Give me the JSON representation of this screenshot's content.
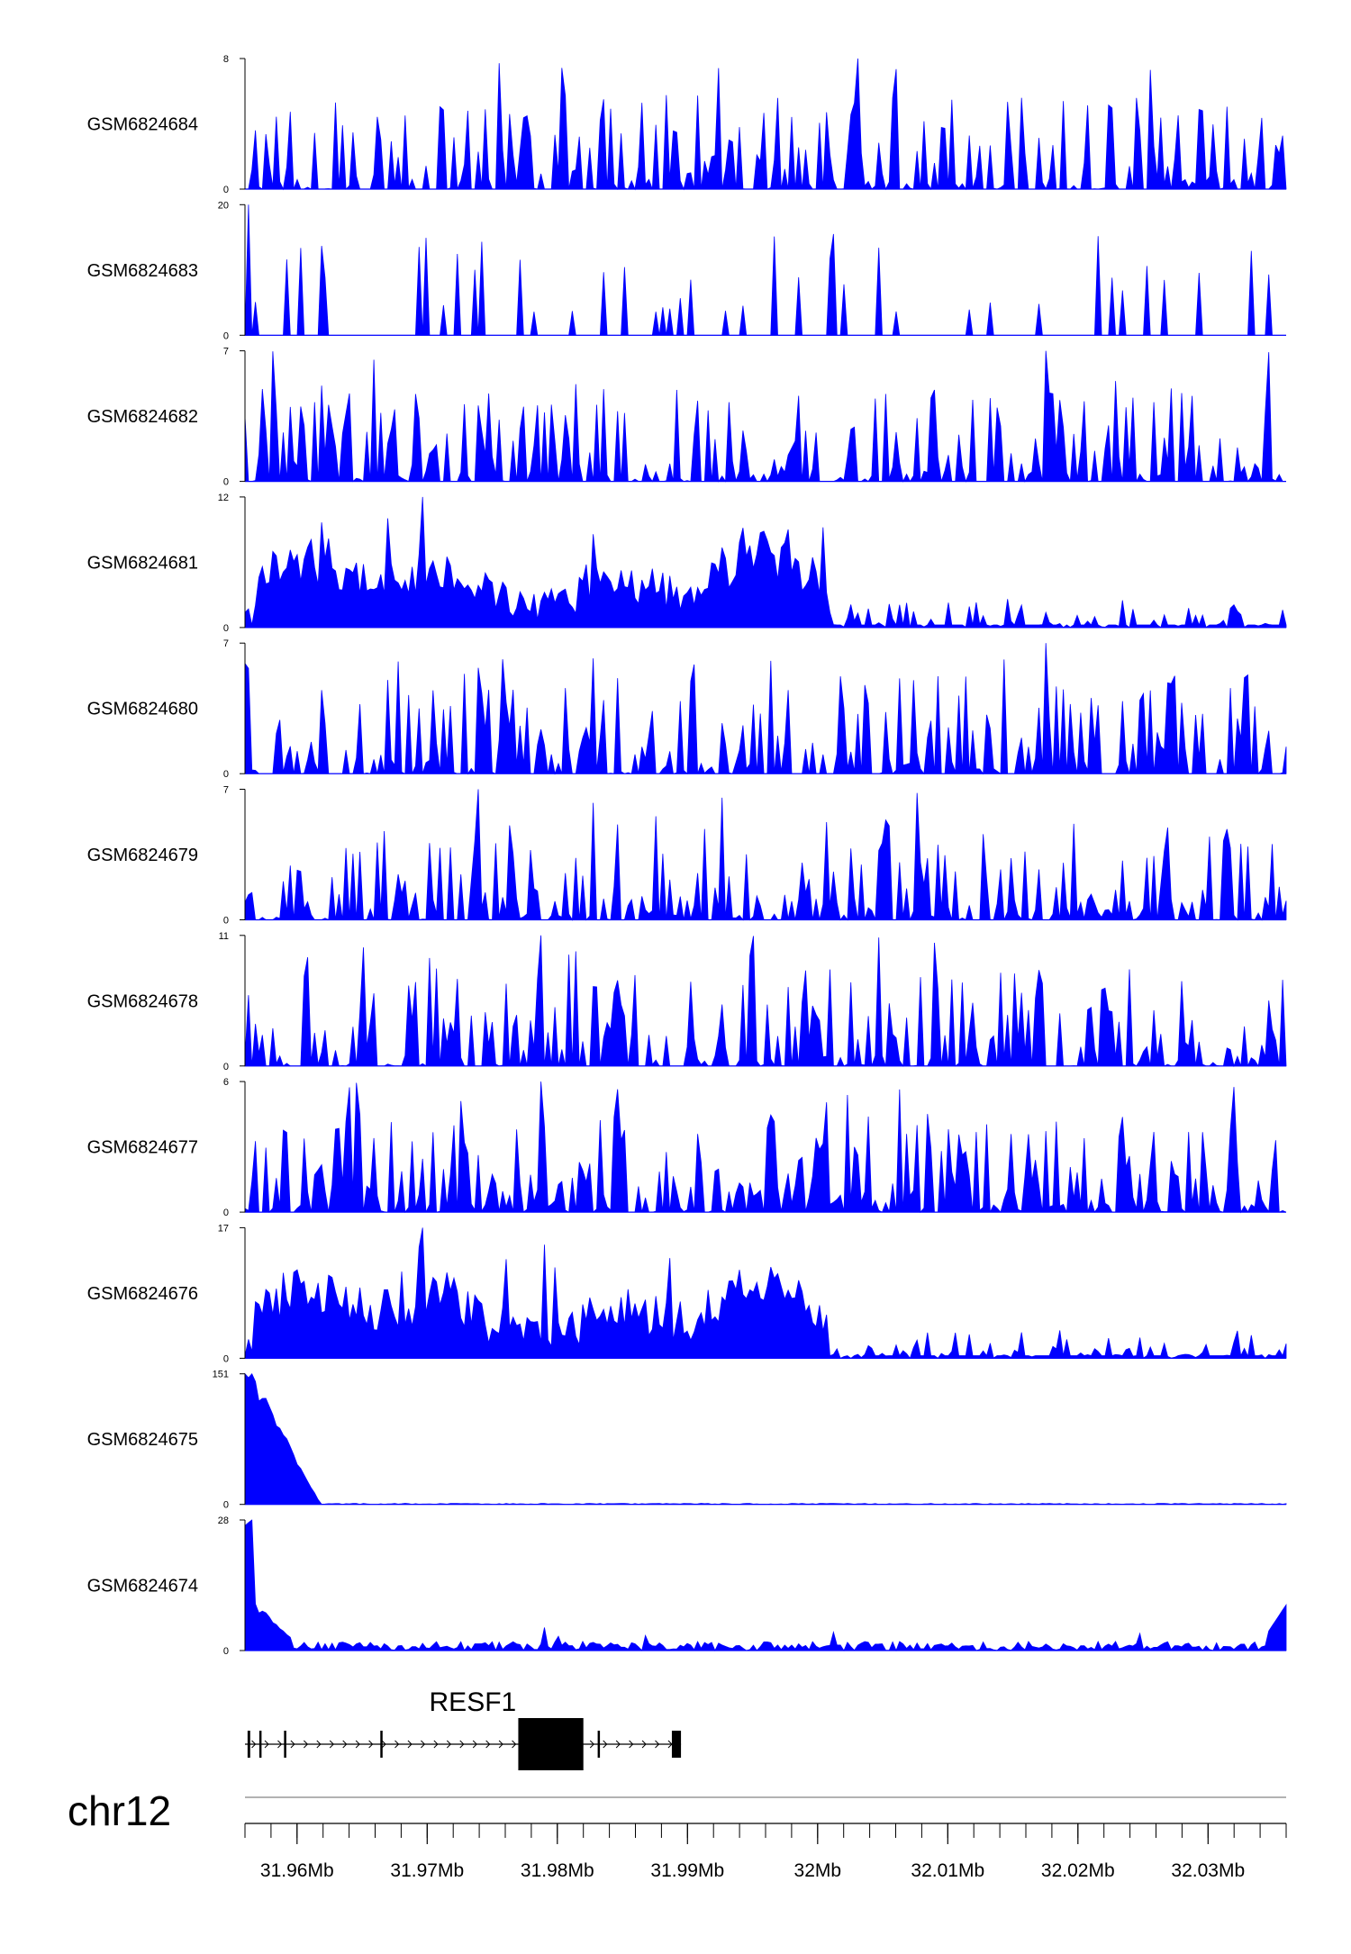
{
  "chart_data": {
    "type": "area",
    "chromosome": "chr12",
    "x_range_bp": [
      31956000,
      32036000
    ],
    "x_ticks": [
      {
        "bp": 31960000,
        "label": "31.96Mb"
      },
      {
        "bp": 31970000,
        "label": "31.97Mb"
      },
      {
        "bp": 31980000,
        "label": "31.98Mb"
      },
      {
        "bp": 31990000,
        "label": "31.99Mb"
      },
      {
        "bp": 32000000,
        "label": "32Mb"
      },
      {
        "bp": 32010000,
        "label": "32.01Mb"
      },
      {
        "bp": 32020000,
        "label": "32.02Mb"
      },
      {
        "bp": 32030000,
        "label": "32.03Mb"
      }
    ],
    "minor_tick_step_bp": 2000,
    "color": "#0000FF",
    "tracks": [
      {
        "name": "GSM6824684",
        "ymin": 0,
        "ymax": 8,
        "ymin_label": "0",
        "ymax_label": "8",
        "profile": "noise",
        "peak": 8
      },
      {
        "name": "GSM6824683",
        "ymin": 0,
        "ymax": 20,
        "ymin_label": "0",
        "ymax_label": "20",
        "profile": "sparse",
        "peak": 20
      },
      {
        "name": "GSM6824682",
        "ymin": 0,
        "ymax": 7,
        "ymin_label": "0",
        "ymax_label": "7",
        "profile": "noise",
        "peak": 7
      },
      {
        "name": "GSM6824681",
        "ymin": 0,
        "ymax": 12,
        "ymin_label": "0",
        "ymax_label": "12",
        "profile": "domain",
        "peak": 12
      },
      {
        "name": "GSM6824680",
        "ymin": 0,
        "ymax": 7,
        "ymin_label": "0",
        "ymax_label": "7",
        "profile": "noise",
        "peak": 7
      },
      {
        "name": "GSM6824679",
        "ymin": 0,
        "ymax": 7,
        "ymin_label": "0",
        "ymax_label": "7",
        "profile": "noise",
        "peak": 7
      },
      {
        "name": "GSM6824678",
        "ymin": 0,
        "ymax": 11,
        "ymin_label": "0",
        "ymax_label": "11",
        "profile": "noise",
        "peak": 11
      },
      {
        "name": "GSM6824677",
        "ymin": 0,
        "ymax": 6,
        "ymin_label": "0",
        "ymax_label": "6",
        "profile": "dense",
        "peak": 6
      },
      {
        "name": "GSM6824676",
        "ymin": 0,
        "ymax": 17,
        "ymin_label": "0",
        "ymax_label": "17",
        "profile": "domain",
        "peak": 17
      },
      {
        "name": "GSM6824675",
        "ymin": 0,
        "ymax": 151,
        "ymin_label": "0",
        "ymax_label": "151",
        "profile": "promoter",
        "peak": 151
      },
      {
        "name": "GSM6824674",
        "ymin": 0,
        "ymax": 28,
        "ymin_label": "0",
        "ymax_label": "28",
        "profile": "promoter-low",
        "peak": 28
      }
    ],
    "gene": {
      "name": "RESF1",
      "strand": "+",
      "start_bp": 31956000,
      "end_bp": 31989500,
      "exons": [
        {
          "start": 31956200,
          "end": 31956400
        },
        {
          "start": 31957100,
          "end": 31957200
        },
        {
          "start": 31959000,
          "end": 31959120
        },
        {
          "start": 31966400,
          "end": 31966520
        },
        {
          "start": 31977000,
          "end": 31982000
        },
        {
          "start": 31983100,
          "end": 31983250
        },
        {
          "start": 31988800,
          "end": 31989500
        }
      ]
    }
  }
}
